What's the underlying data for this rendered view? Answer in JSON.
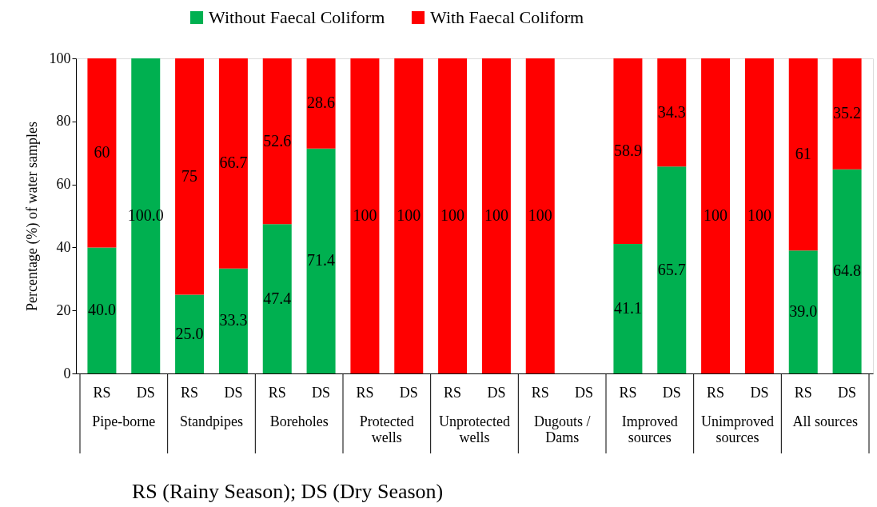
{
  "chart_data": {
    "type": "bar",
    "stacked": true,
    "ylabel": "Percentage (%) of water samples",
    "categories": [
      "RS",
      "DS",
      "RS",
      "DS",
      "RS",
      "DS",
      "RS",
      "DS",
      "RS",
      "DS",
      "RS",
      "DS",
      "RS",
      "DS",
      "RS",
      "DS",
      "RS",
      "DS"
    ],
    "series": [
      {
        "name": "Without Faecal Coliform",
        "color": "#00b050",
        "values": [
          40.0,
          100.0,
          25.0,
          33.3,
          47.4,
          71.4,
          0,
          0,
          0,
          0,
          0,
          null,
          41.1,
          65.7,
          0,
          0,
          39.0,
          64.8
        ],
        "value_labels": [
          "40.0",
          "100.0",
          "25.0",
          "33.3",
          "47.4",
          "71.4",
          null,
          null,
          null,
          null,
          null,
          null,
          "41.1",
          "65.7",
          null,
          null,
          "39.0",
          "64.8"
        ]
      },
      {
        "name": "With Faecal Coliform",
        "color": "#ff0000",
        "values": [
          60,
          0,
          75,
          66.7,
          52.6,
          28.6,
          100,
          100,
          100,
          100,
          100,
          null,
          58.9,
          34.3,
          100,
          100,
          61,
          35.2
        ],
        "value_labels": [
          "60",
          null,
          "75",
          "66.7",
          "52.6",
          "28.6",
          "100",
          "100",
          "100",
          "100",
          "100",
          null,
          "58.9",
          "34.3",
          "100",
          "100",
          "61",
          "35.2"
        ]
      }
    ],
    "ylim": [
      0,
      100
    ],
    "yticks": [
      0,
      20,
      40,
      60,
      80,
      100
    ],
    "grid": false,
    "legend": "top",
    "annotations": [
      "Pipe-borne",
      "Standpipes",
      "Boreholes",
      "Protected\nwells",
      "Unprotected\nwells",
      "Dugouts /\nDams",
      "Improved\nsources",
      "Unimproved\nsources",
      "All sources",
      "RS (Rainy Season); DS (Dry Season)"
    ]
  }
}
